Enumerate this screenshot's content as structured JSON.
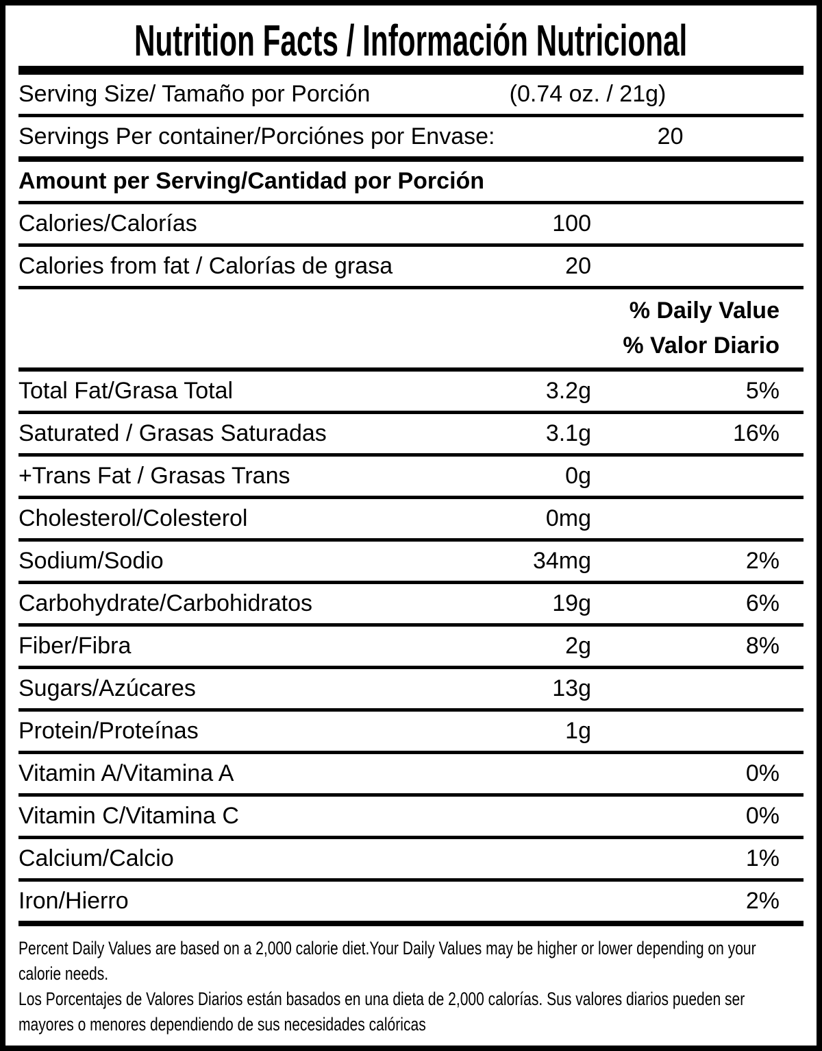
{
  "title": "Nutrition Facts / Información Nutricional",
  "colors": {
    "text": "#000000",
    "background": "#ffffff"
  },
  "daily_value_header": {
    "en": "% Daily Value",
    "es": "% Valor Diario"
  },
  "rows": [
    {
      "label": "Serving Size/ Tamaño por Porción",
      "amount": "(0.74 oz. / 21g)",
      "pct": ""
    },
    {
      "label": "Servings Per container/Porciónes por Envase:",
      "amount": "20",
      "pct": ""
    },
    {
      "label": "Amount per Serving/Cantidad por Porción",
      "amount": "",
      "pct": ""
    },
    {
      "label": "Calories/Calorías",
      "amount": "100",
      "pct": ""
    },
    {
      "label": "Calories from fat / Calorías de grasa",
      "amount": "20",
      "pct": ""
    },
    {
      "label": "Total Fat/Grasa Total",
      "amount": "3.2g",
      "pct": "5%"
    },
    {
      "label": "Saturated / Grasas Saturadas",
      "amount": "3.1g",
      "pct": "16%"
    },
    {
      "label": "+Trans Fat / Grasas Trans",
      "amount": "0g",
      "pct": ""
    },
    {
      "label": "Cholesterol/Colesterol",
      "amount": "0mg",
      "pct": ""
    },
    {
      "label": "Sodium/Sodio",
      "amount": "34mg",
      "pct": "2%"
    },
    {
      "label": "Carbohydrate/Carbohidratos",
      "amount": "19g",
      "pct": "6%"
    },
    {
      "label": "Fiber/Fibra",
      "amount": "2g",
      "pct": "8%"
    },
    {
      "label": "Sugars/Azúcares",
      "amount": "13g",
      "pct": ""
    },
    {
      "label": "Protein/Proteínas",
      "amount": "1g",
      "pct": ""
    },
    {
      "label": "Vitamin A/Vitamina A",
      "amount": "",
      "pct": "0%"
    },
    {
      "label": "Vitamin C/Vitamina C",
      "amount": "",
      "pct": "0%"
    },
    {
      "label": "Calcium/Calcio",
      "amount": "",
      "pct": "1%"
    },
    {
      "label": "Iron/Hierro",
      "amount": "",
      "pct": "2%"
    }
  ],
  "footnotes": {
    "en": "Percent Daily Values are based on a 2,000 calorie diet.Your Daily Values may be higher or lower depending on your\ncalorie needs.",
    "es": "Los Porcentajes de Valores Diarios están basados en una dieta de 2,000 calorías. Sus valores diarios pueden ser\nmayores o menores dependiendo de sus necesidades calóricas"
  }
}
